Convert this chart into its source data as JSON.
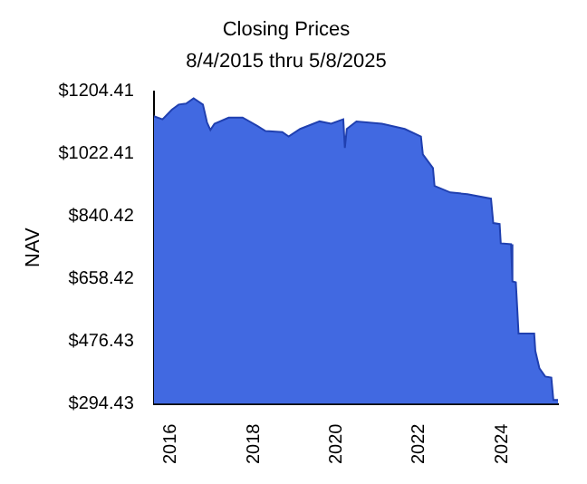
{
  "chart_data": {
    "type": "area",
    "title": "Closing Prices",
    "subtitle": "8/4/2015 thru 5/8/2025",
    "ylabel": "NAV",
    "x": [
      "2015-08-04",
      "2015-10-20",
      "2016-01-10",
      "2016-03-10",
      "2016-05-15",
      "2016-07-20",
      "2016-10-10",
      "2016-11-15",
      "2016-12-15",
      "2017-01-20",
      "2017-05-25",
      "2017-09-25",
      "2018-02-01",
      "2018-04-15",
      "2018-09-10",
      "2018-11-05",
      "2019-02-15",
      "2019-08-05",
      "2019-11-15",
      "2020-03-01",
      "2020-03-15",
      "2020-04-01",
      "2020-06-25",
      "2021-02-05",
      "2021-08-25",
      "2022-01-15",
      "2022-02-01",
      "2022-05-01",
      "2022-05-15",
      "2022-10-01",
      "2023-03-01",
      "2023-09-25",
      "2023-10-15",
      "2023-12-10",
      "2023-12-20",
      "2024-03-20",
      "2024-04-01",
      "2024-05-01",
      "2024-05-15",
      "2024-05-25",
      "2024-10-10",
      "2024-10-20",
      "2024-11-25",
      "2025-01-15",
      "2025-03-10",
      "2025-03-28",
      "2025-05-08"
    ],
    "series": [
      {
        "color": "#4169e1",
        "values": [
          1132,
          1123,
          1151,
          1166,
          1169,
          1184,
          1166,
          1114,
          1092,
          1110,
          1128,
          1128,
          1104,
          1089,
          1086,
          1073,
          1095,
          1117,
          1110,
          1123,
          1040,
          1095,
          1117,
          1110,
          1095,
          1073,
          1021,
          981,
          929,
          910,
          905,
          892,
          821,
          818,
          762,
          759,
          651,
          648,
          562,
          499,
          499,
          448,
          398,
          374,
          371,
          306,
          306
        ]
      }
    ],
    "xlim": [
      "2015-08-04",
      "2025-05-08"
    ],
    "xticks": [
      {
        "value": "2016-01-01",
        "label": "2016"
      },
      {
        "value": "2018-01-01",
        "label": "2018"
      },
      {
        "value": "2020-01-01",
        "label": "2020"
      },
      {
        "value": "2022-01-01",
        "label": "2022"
      },
      {
        "value": "2024-01-01",
        "label": "2024"
      }
    ],
    "ylim": [
      294.43,
      1204.41
    ],
    "yticks": [
      {
        "value": 294.43,
        "label": "$294.43"
      },
      {
        "value": 476.43,
        "label": "$476.43"
      },
      {
        "value": 658.42,
        "label": "$658.42"
      },
      {
        "value": 840.42,
        "label": "$840.42"
      },
      {
        "value": 1022.41,
        "label": "$1022.41"
      },
      {
        "value": 1204.41,
        "label": "$1204.41"
      }
    ],
    "grid": false,
    "legend": false
  }
}
